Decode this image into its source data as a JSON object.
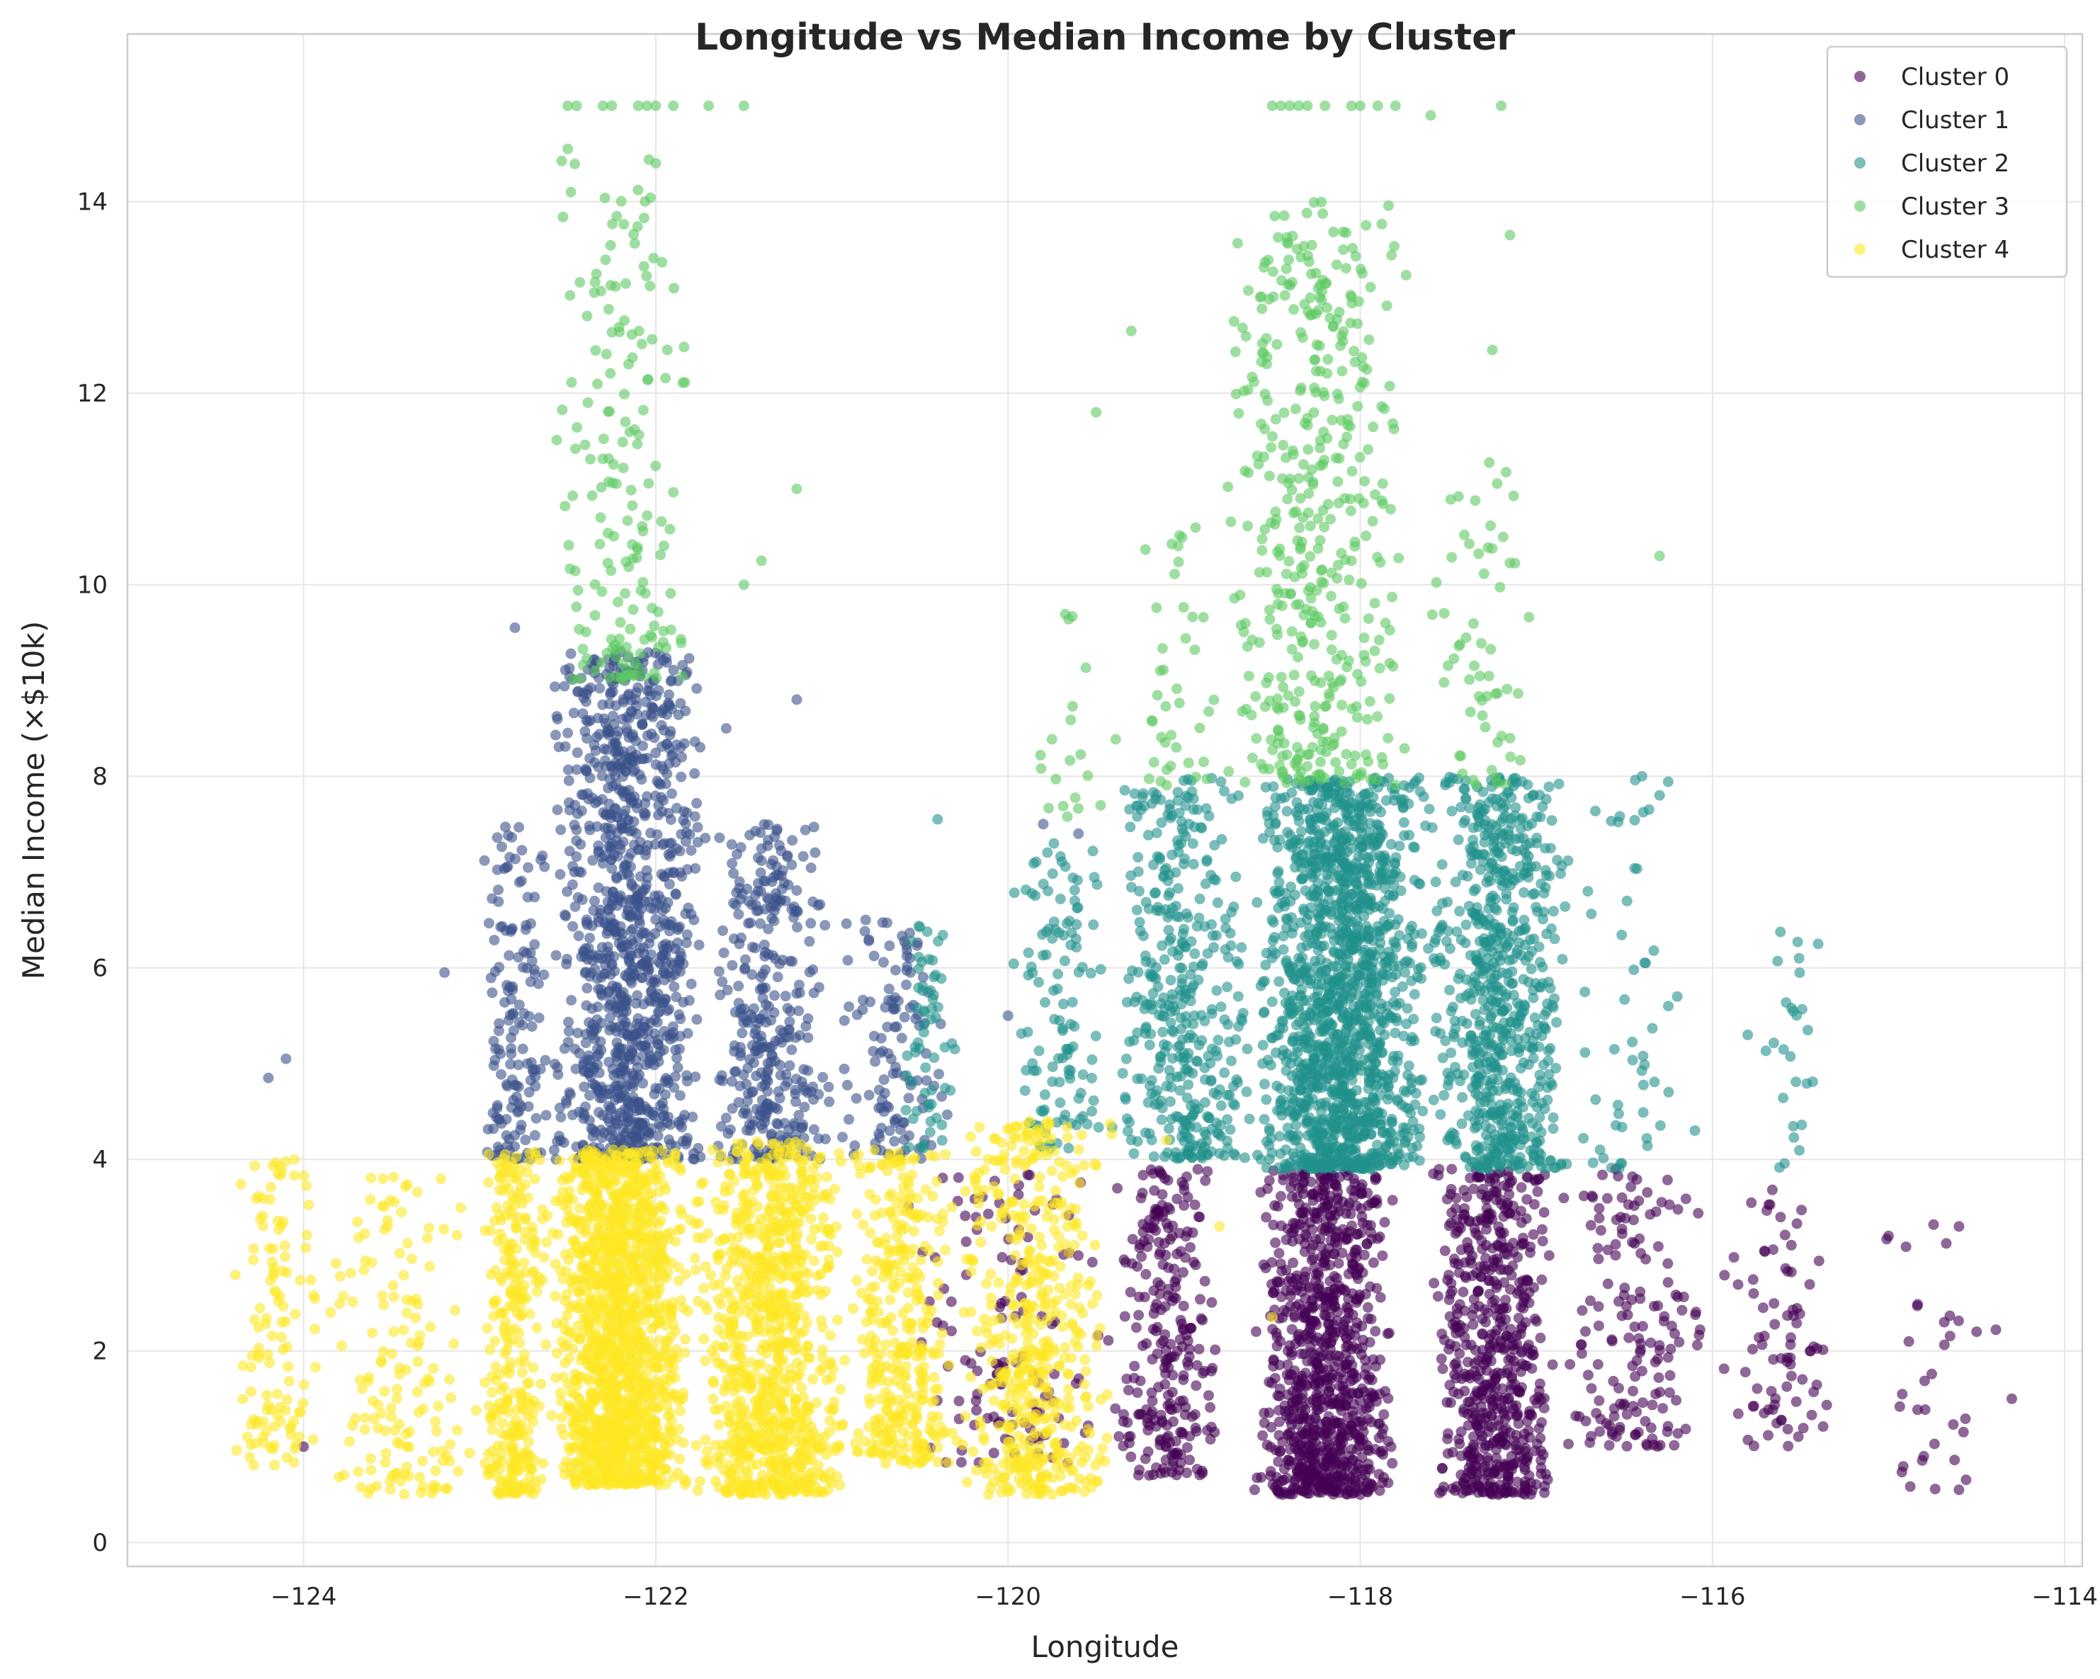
{
  "chart_data": {
    "type": "scatter",
    "title": "Longitude vs Median Income by Cluster",
    "xlabel": "Longitude",
    "ylabel": "Median Income (×$10k)",
    "xlim": [
      -125,
      -113.9
    ],
    "ylim": [
      -0.25,
      15.75
    ],
    "x_ticks": [
      -124,
      -122,
      -120,
      -118,
      -116,
      -114
    ],
    "x_tick_labels": [
      "−124",
      "−122",
      "−120",
      "−118",
      "−116",
      "−114"
    ],
    "y_ticks": [
      0,
      2,
      4,
      6,
      8,
      10,
      12,
      14
    ],
    "y_tick_labels": [
      "0",
      "2",
      "4",
      "6",
      "8",
      "10",
      "12",
      "14"
    ],
    "grid": true,
    "legend_position": "top-right",
    "point_alpha": 0.6,
    "series": [
      {
        "name": "Cluster 0",
        "color": "#440154",
        "description_ranges": "income below ~3.9, longitude -120.6 to -114.3",
        "groups": [
          {
            "x_range": [
              -120.6,
              -119.4
            ],
            "y_range": [
              0.8,
              3.9
            ],
            "count": 120
          },
          {
            "x_range": [
              -119.4,
              -118.8
            ],
            "y_range": [
              0.7,
              3.9
            ],
            "count": 260
          },
          {
            "x_range": [
              -118.6,
              -117.8
            ],
            "y_range": [
              0.5,
              3.9
            ],
            "count": 900
          },
          {
            "x_range": [
              -117.6,
              -116.9
            ],
            "y_range": [
              0.5,
              3.9
            ],
            "count": 600
          },
          {
            "x_range": [
              -116.9,
              -116.0
            ],
            "y_range": [
              1.0,
              3.9
            ],
            "count": 160
          },
          {
            "x_range": [
              -116.0,
              -115.3
            ],
            "y_range": [
              1.0,
              3.7
            ],
            "count": 80
          },
          {
            "x_range": [
              -115.1,
              -114.3
            ],
            "y_range": [
              0.5,
              3.4
            ],
            "count": 30
          }
        ],
        "points": [
          [
            -124.0,
            1.0
          ],
          [
            -118.6,
            0.55
          ],
          [
            -118.0,
            0.5
          ],
          [
            -117.2,
            0.55
          ],
          [
            -115.0,
            3.2
          ],
          [
            -114.6,
            0.55
          ],
          [
            -114.3,
            1.5
          ],
          [
            -114.5,
            2.2
          ],
          [
            -114.6,
            3.3
          ],
          [
            -114.8,
            0.9
          ]
        ]
      },
      {
        "name": "Cluster 1",
        "color": "#3b528b",
        "groups": [
          {
            "x_range": [
              -123.0,
              -122.6
            ],
            "y_range": [
              4.0,
              7.5
            ],
            "count": 150
          },
          {
            "x_range": [
              -122.6,
              -121.7
            ],
            "y_range": [
              4.0,
              9.3
            ],
            "count": 1100
          },
          {
            "x_range": [
              -121.7,
              -121.0
            ],
            "y_range": [
              4.0,
              7.5
            ],
            "count": 350
          },
          {
            "x_range": [
              -121.0,
              -120.3
            ],
            "y_range": [
              4.0,
              6.5
            ],
            "count": 120
          }
        ],
        "points": [
          [
            -124.2,
            4.85
          ],
          [
            -124.1,
            5.05
          ],
          [
            -123.2,
            5.95
          ],
          [
            -122.8,
            9.55
          ],
          [
            -121.2,
            8.8
          ],
          [
            -121.6,
            8.5
          ],
          [
            -119.8,
            7.5
          ],
          [
            -119.6,
            7.4
          ],
          [
            -120.0,
            5.5
          ]
        ]
      },
      {
        "name": "Cluster 2",
        "color": "#21918c",
        "groups": [
          {
            "x_range": [
              -120.6,
              -120.3
            ],
            "y_range": [
              4.1,
              6.5
            ],
            "count": 60
          },
          {
            "x_range": [
              -120.0,
              -119.4
            ],
            "y_range": [
              4.1,
              7.3
            ],
            "count": 120
          },
          {
            "x_range": [
              -119.4,
              -118.6
            ],
            "y_range": [
              4.0,
              8.0
            ],
            "count": 400
          },
          {
            "x_range": [
              -118.6,
              -117.6
            ],
            "y_range": [
              3.9,
              8.0
            ],
            "count": 1500
          },
          {
            "x_range": [
              -117.6,
              -116.8
            ],
            "y_range": [
              3.9,
              8.0
            ],
            "count": 700
          },
          {
            "x_range": [
              -116.8,
              -116.2
            ],
            "y_range": [
              3.9,
              8.0
            ],
            "count": 50
          },
          {
            "x_range": [
              -115.7,
              -115.4
            ],
            "y_range": [
              3.9,
              6.4
            ],
            "count": 25
          }
        ],
        "points": [
          [
            -120.4,
            7.55
          ],
          [
            -116.4,
            8.0
          ],
          [
            -116.3,
            7.8
          ],
          [
            -115.4,
            6.25
          ],
          [
            -115.8,
            5.3
          ],
          [
            -116.1,
            4.3
          ],
          [
            -116.2,
            5.7
          ]
        ]
      },
      {
        "name": "Cluster 3",
        "color": "#5ec962",
        "groups": [
          {
            "x_range": [
              -122.6,
              -121.8
            ],
            "y_range": [
              9.0,
              14.5
            ],
            "count": 180
          },
          {
            "x_range": [
              -118.8,
              -117.7
            ],
            "y_range": [
              7.9,
              14.0
            ],
            "count": 450
          },
          {
            "x_range": [
              -117.6,
              -117.0
            ],
            "y_range": [
              7.9,
              11.3
            ],
            "count": 60
          },
          {
            "x_range": [
              -120.0,
              -119.3
            ],
            "y_range": [
              7.5,
              9.8
            ],
            "count": 20
          },
          {
            "x_range": [
              -119.3,
              -118.8
            ],
            "y_range": [
              7.9,
              10.6
            ],
            "count": 40
          }
        ],
        "points": [
          [
            -122.5,
            15.0
          ],
          [
            -122.45,
            15.0
          ],
          [
            -122.3,
            15.0
          ],
          [
            -122.25,
            15.0
          ],
          [
            -122.1,
            15.0
          ],
          [
            -122.05,
            15.0
          ],
          [
            -122.0,
            15.0
          ],
          [
            -121.9,
            15.0
          ],
          [
            -121.7,
            15.0
          ],
          [
            -121.5,
            15.0
          ],
          [
            -118.5,
            15.0
          ],
          [
            -118.45,
            15.0
          ],
          [
            -118.4,
            15.0
          ],
          [
            -118.35,
            15.0
          ],
          [
            -118.3,
            15.0
          ],
          [
            -118.2,
            15.0
          ],
          [
            -118.05,
            15.0
          ],
          [
            -118.0,
            15.0
          ],
          [
            -117.9,
            15.0
          ],
          [
            -117.8,
            15.0
          ],
          [
            -117.6,
            14.9
          ],
          [
            -117.2,
            15.0
          ],
          [
            -117.15,
            13.65
          ],
          [
            -117.25,
            12.45
          ],
          [
            -121.2,
            11.0
          ],
          [
            -121.4,
            10.25
          ],
          [
            -121.5,
            10.0
          ],
          [
            -119.5,
            11.8
          ],
          [
            -119.3,
            12.65
          ],
          [
            -116.3,
            10.3
          ],
          [
            -122.0,
            14.4
          ],
          [
            -122.5,
            14.55
          ]
        ]
      },
      {
        "name": "Cluster 4",
        "color": "#fde725",
        "groups": [
          {
            "x_range": [
              -124.4,
              -123.9
            ],
            "y_range": [
              0.8,
              4.0
            ],
            "count": 120
          },
          {
            "x_range": [
              -123.9,
              -123.0
            ],
            "y_range": [
              0.5,
              3.9
            ],
            "count": 150
          },
          {
            "x_range": [
              -123.0,
              -122.6
            ],
            "y_range": [
              0.5,
              4.1
            ],
            "count": 300
          },
          {
            "x_range": [
              -122.6,
              -121.8
            ],
            "y_range": [
              0.6,
              4.1
            ],
            "count": 1400
          },
          {
            "x_range": [
              -121.8,
              -120.9
            ],
            "y_range": [
              0.5,
              4.2
            ],
            "count": 900
          },
          {
            "x_range": [
              -120.9,
              -120.3
            ],
            "y_range": [
              0.8,
              4.1
            ],
            "count": 350
          },
          {
            "x_range": [
              -120.3,
              -119.4
            ],
            "y_range": [
              0.5,
              4.4
            ],
            "count": 500
          }
        ],
        "points": [
          [
            -118.8,
            3.3
          ],
          [
            -118.5,
            2.35
          ],
          [
            -119.1,
            4.2
          ]
        ]
      }
    ]
  }
}
